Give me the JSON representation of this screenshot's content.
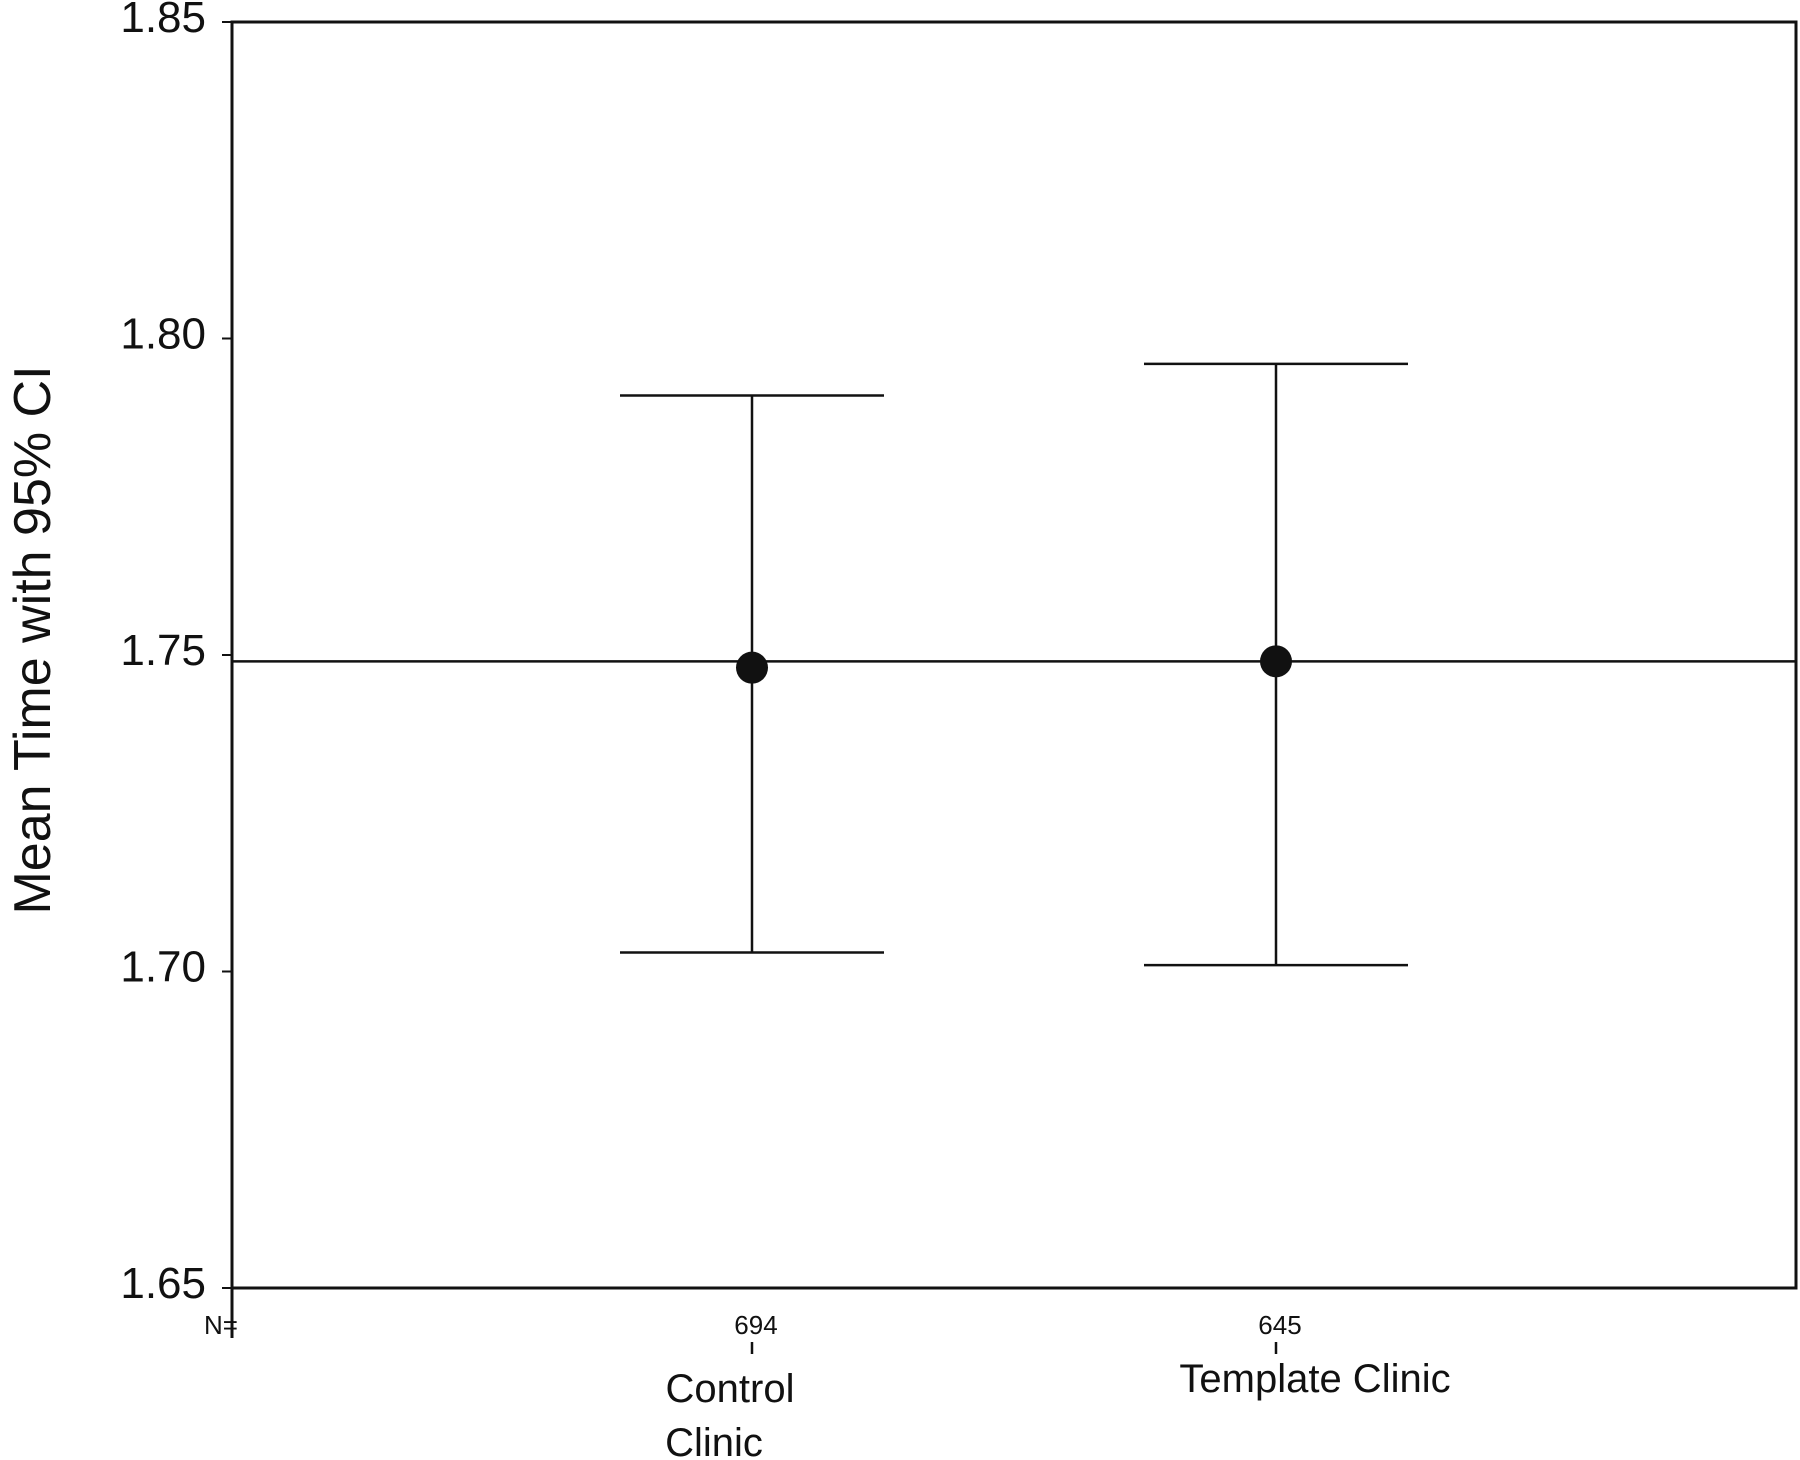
{
  "chart_data": {
    "type": "errorbar",
    "ylabel": "Mean Time with 95% CI",
    "ylim": [
      1.65,
      1.85
    ],
    "yticks": [
      "1.65",
      "1.70",
      "1.75",
      "1.80",
      "1.85"
    ],
    "n_prefix": "N=",
    "reference_line": 1.749,
    "categories": [
      {
        "label_lines": [
          "Control",
          "Clinic"
        ],
        "n": "694",
        "mean": 1.748,
        "lower": 1.703,
        "upper": 1.791
      },
      {
        "label_lines": [
          "Template Clinic"
        ],
        "n": "645",
        "mean": 1.749,
        "lower": 1.701,
        "upper": 1.796
      }
    ],
    "colors": {
      "ink": "#111111",
      "background": "#ffffff"
    }
  }
}
